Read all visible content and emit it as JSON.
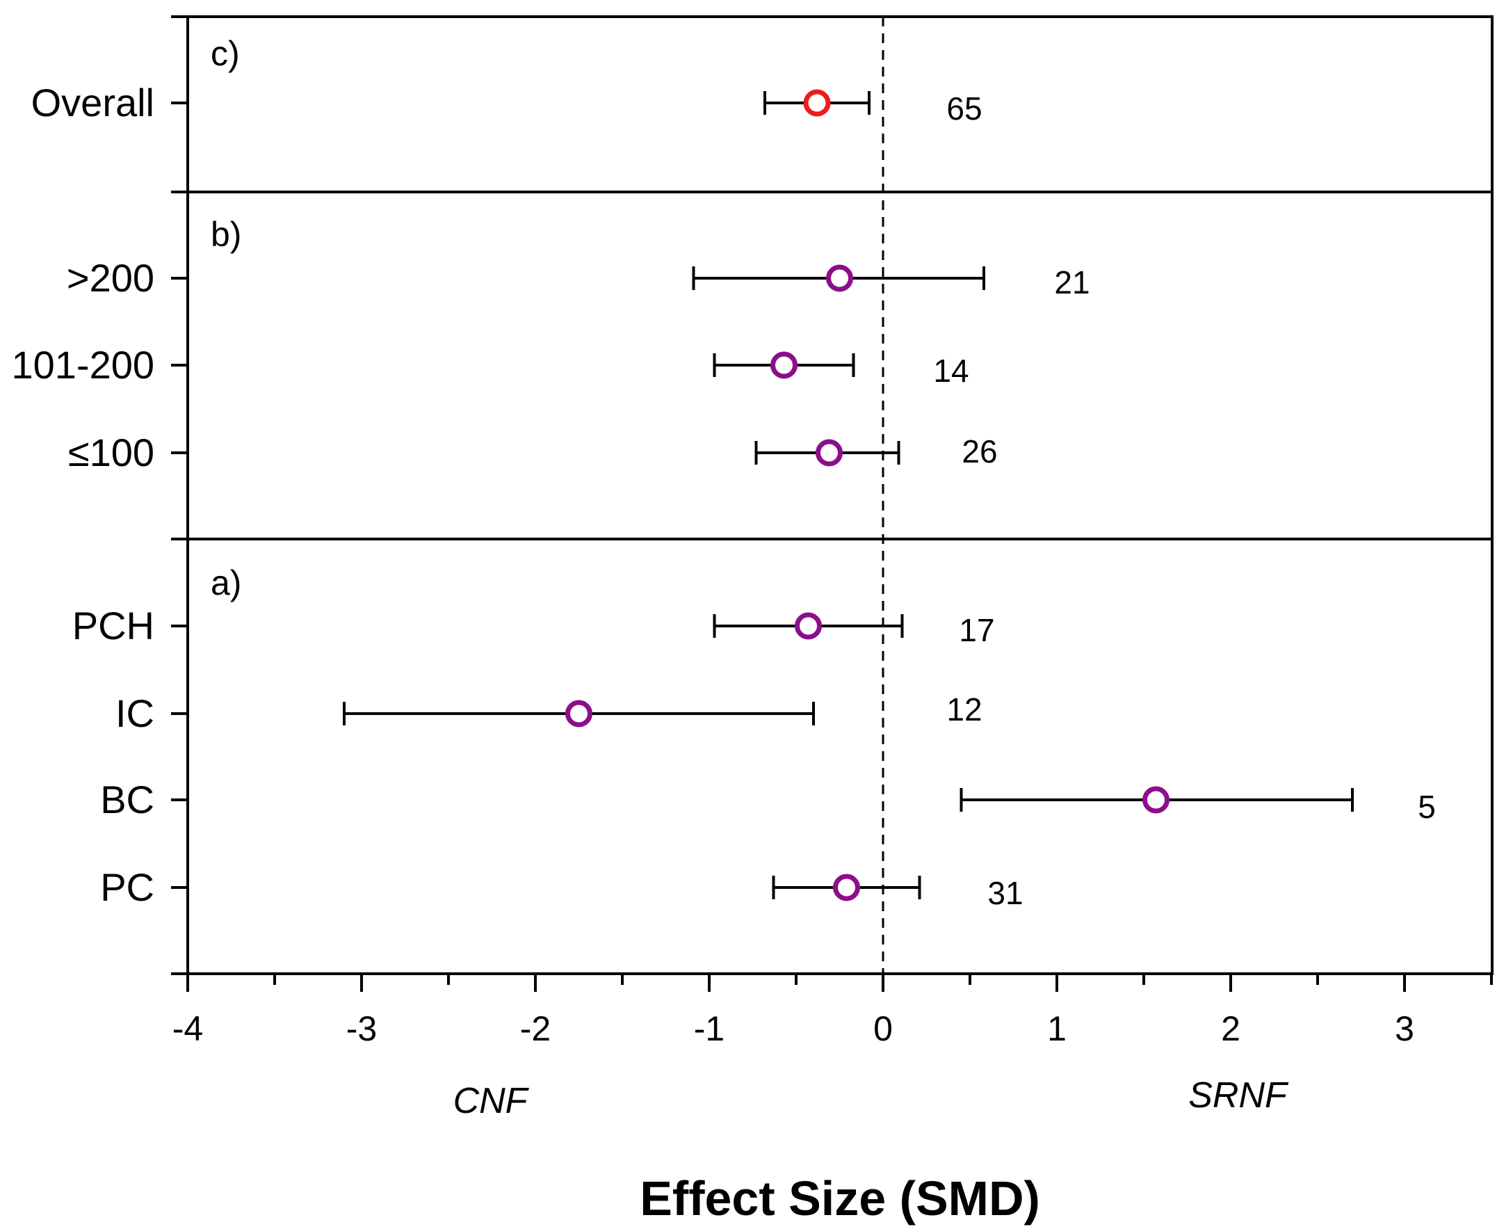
{
  "chart_data": {
    "type": "forest",
    "xlabel": "Effect Size (SMD)",
    "xlim": [
      -4,
      3.5
    ],
    "x_ticks": [
      "-4",
      "-3",
      "-2",
      "-1",
      "0",
      "1",
      "2",
      "3"
    ],
    "reference_line": 0,
    "direction_labels": {
      "left": "CNF",
      "right": "SRNF"
    },
    "colors": {
      "overall": "#ee1c1c",
      "subgroup": "#8b0f8b",
      "axis": "#000000"
    },
    "panels": [
      {
        "label": "c)",
        "items": [
          {
            "category": "Overall",
            "mean": -0.38,
            "lower": -0.68,
            "upper": -0.08,
            "n": "65",
            "color_key": "overall"
          }
        ]
      },
      {
        "label": "b)",
        "items": [
          {
            "category": ">200",
            "mean": -0.25,
            "lower": -1.09,
            "upper": 0.58,
            "n": "21",
            "color_key": "subgroup"
          },
          {
            "category": "101-200",
            "mean": -0.57,
            "lower": -0.97,
            "upper": -0.17,
            "n": "14",
            "color_key": "subgroup"
          },
          {
            "category": "≤100",
            "mean": -0.31,
            "lower": -0.73,
            "upper": 0.09,
            "n": "26",
            "color_key": "subgroup"
          }
        ]
      },
      {
        "label": "a)",
        "items": [
          {
            "category": "PCH",
            "mean": -0.43,
            "lower": -0.97,
            "upper": 0.11,
            "n": "17",
            "color_key": "subgroup"
          },
          {
            "category": "IC",
            "mean": -1.75,
            "lower": -3.1,
            "upper": -0.4,
            "n": "12",
            "color_key": "subgroup"
          },
          {
            "category": "BC",
            "mean": 1.57,
            "lower": 0.45,
            "upper": 2.7,
            "n": "5",
            "color_key": "subgroup"
          },
          {
            "category": "PC",
            "mean": -0.21,
            "lower": -0.63,
            "upper": 0.21,
            "n": "31",
            "color_key": "subgroup"
          }
        ]
      }
    ]
  }
}
